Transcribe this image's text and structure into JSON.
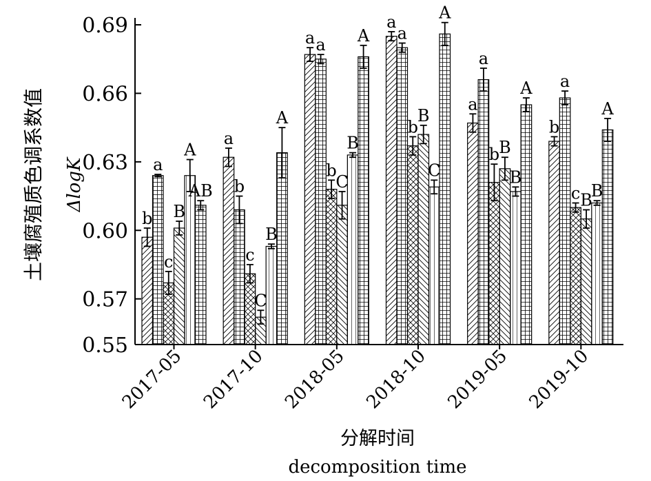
{
  "chart_data": {
    "type": "bar",
    "ylabel_lines": [
      "土壤腐殖质色调系数值",
      "ΔlogK"
    ],
    "xlabel_lines": [
      "分解时间",
      "decomposition time"
    ],
    "ylim": [
      0.55,
      0.69
    ],
    "yticks": [
      "0.55",
      "0.57",
      "0.60",
      "0.63",
      "0.66",
      "0.69"
    ],
    "categories": [
      "2017-05",
      "2017-10",
      "2018-05",
      "2018-10",
      "2019-05",
      "2019-10"
    ],
    "grid": false,
    "legend": false,
    "series": [
      {
        "pattern": "diag-right",
        "values": [
          0.597,
          0.632,
          0.677,
          0.685,
          0.647,
          0.639
        ],
        "errors": [
          0.004,
          0.004,
          0.003,
          0.002,
          0.004,
          0.002
        ],
        "labels": [
          "b",
          "a",
          "a",
          "a",
          "a",
          "b"
        ]
      },
      {
        "pattern": "grid",
        "values": [
          0.624,
          0.609,
          0.675,
          0.68,
          0.666,
          0.658
        ],
        "errors": [
          0.0005,
          0.006,
          0.002,
          0.002,
          0.005,
          0.003
        ],
        "labels": [
          "a",
          "b",
          "a",
          "a",
          "a",
          "a"
        ]
      },
      {
        "pattern": "crosshatch",
        "values": [
          0.577,
          0.581,
          0.618,
          0.637,
          0.621,
          0.61
        ],
        "errors": [
          0.005,
          0.004,
          0.004,
          0.004,
          0.008,
          0.002
        ],
        "labels": [
          "c",
          "c",
          "b",
          "b",
          "b",
          "c"
        ]
      },
      {
        "pattern": "diag-left",
        "values": [
          0.601,
          0.562,
          0.611,
          0.642,
          0.627,
          0.605
        ],
        "errors": [
          0.003,
          0.003,
          0.006,
          0.004,
          0.005,
          0.004
        ],
        "labels": [
          "B",
          "C",
          "C",
          "B",
          "B",
          "B"
        ]
      },
      {
        "pattern": "vertical",
        "values": [
          0.624,
          0.593,
          0.633,
          0.619,
          0.617,
          0.612
        ],
        "errors": [
          0.007,
          0.001,
          0.001,
          0.003,
          0.002,
          0.001
        ],
        "labels": [
          "A",
          "B",
          "B",
          "C",
          "B",
          "B"
        ]
      },
      {
        "pattern": "grid",
        "values": [
          0.611,
          0.634,
          0.676,
          0.686,
          0.655,
          0.644
        ],
        "errors": [
          0.002,
          0.011,
          0.005,
          0.005,
          0.003,
          0.005
        ],
        "labels": [
          "AB",
          "A",
          "A",
          "A",
          "A",
          "A"
        ]
      }
    ]
  }
}
